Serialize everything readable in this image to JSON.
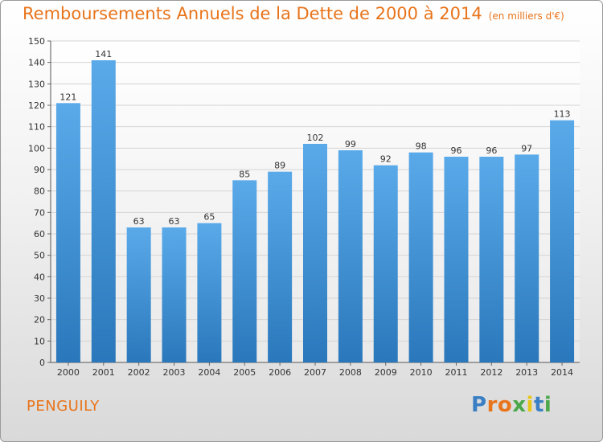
{
  "title": "Remboursements Annuels de la Dette de 2000 à 2014",
  "unit_note": "(en milliers d'€)",
  "location": "PENGUILY",
  "brand": {
    "letters": [
      "P",
      "r",
      "o",
      "x",
      "i",
      "t",
      "i"
    ],
    "colors": [
      "#3a7fc4",
      "#e8741b",
      "#e8741b",
      "#4aa84a",
      "#e6c619",
      "#3a7fc4",
      "#4aa84a"
    ]
  },
  "colors": {
    "accent": "#e8741b",
    "bar_top": "#5aaaea",
    "bar_bottom": "#2a78bb"
  },
  "chart_data": {
    "type": "bar",
    "categories": [
      "2000",
      "2001",
      "2002",
      "2003",
      "2004",
      "2005",
      "2006",
      "2007",
      "2008",
      "2009",
      "2010",
      "2011",
      "2012",
      "2013",
      "2014"
    ],
    "values": [
      121,
      141,
      63,
      63,
      65,
      85,
      89,
      102,
      99,
      92,
      98,
      96,
      96,
      97,
      113
    ],
    "ylim": [
      0,
      150
    ],
    "yticks": [
      0,
      10,
      20,
      30,
      40,
      50,
      60,
      70,
      80,
      90,
      100,
      110,
      120,
      130,
      140,
      150
    ],
    "grid": true,
    "xlabel": "",
    "ylabel": ""
  }
}
